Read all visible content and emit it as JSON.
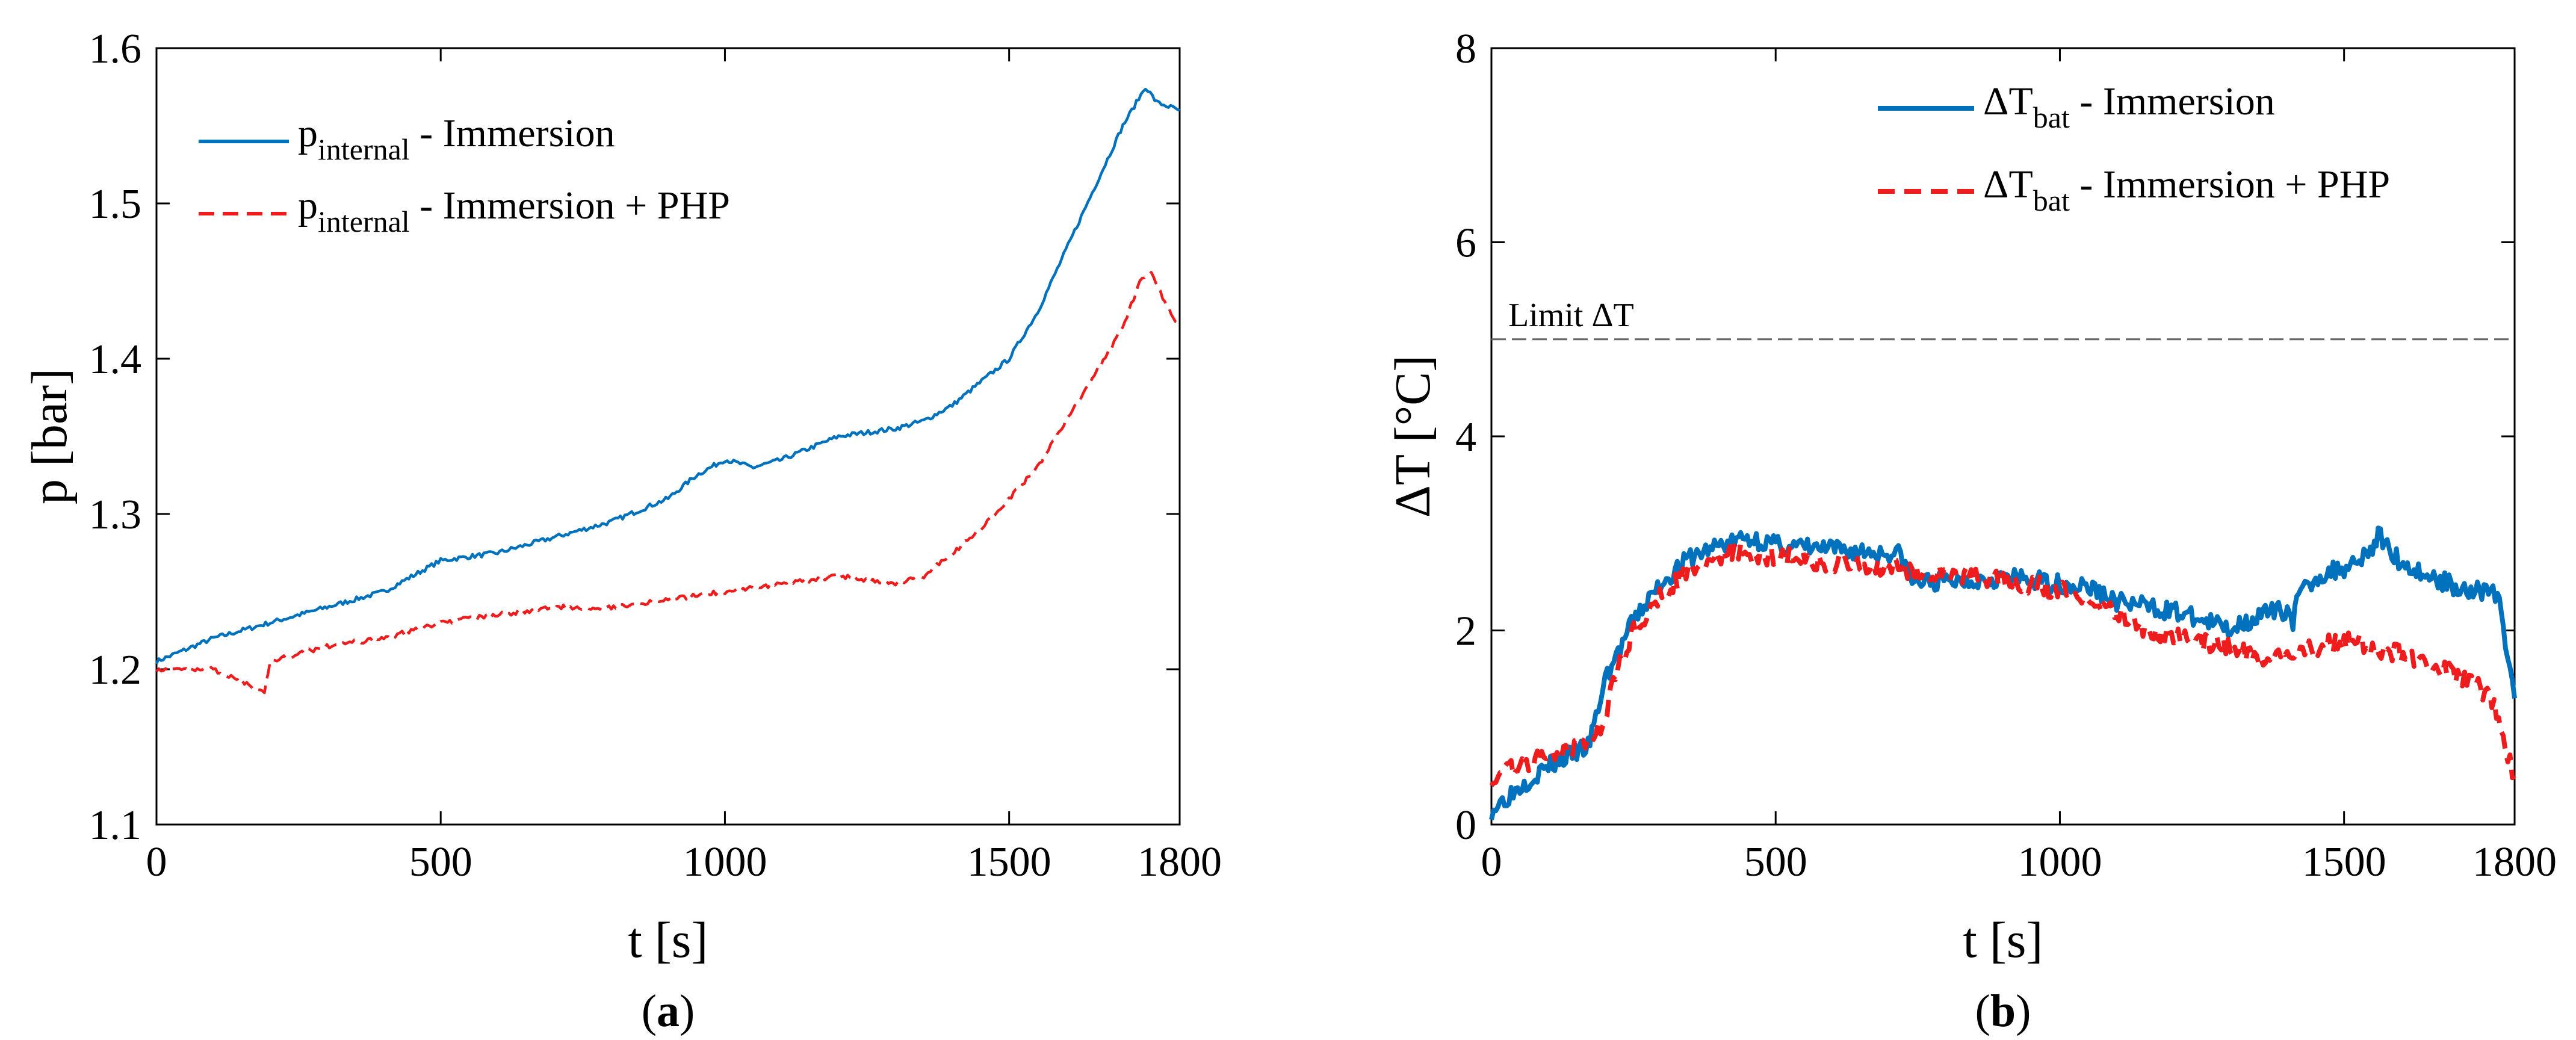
{
  "chart_data": [
    {
      "type": "line",
      "panel_label": "a",
      "xlabel": "t [s]",
      "ylabel": "p [bar]",
      "xlim": [
        0,
        1800
      ],
      "ylim": [
        1.1,
        1.6
      ],
      "xticks": [
        0,
        500,
        1000,
        1500,
        1800
      ],
      "yticks": [
        1.1,
        1.2,
        1.3,
        1.4,
        1.5,
        1.6
      ],
      "xtick_labels": [
        "0",
        "500",
        "1000",
        "1500",
        "1800"
      ],
      "ytick_labels": [
        "1.1",
        "1.2",
        "1.3",
        "1.4",
        "1.5",
        "1.6"
      ],
      "grid": false,
      "legend_position": "top-left",
      "series": [
        {
          "name_main": "p",
          "name_sub": "internal",
          "name_rest": " - Immersion",
          "color": "#0072BD",
          "style": "solid",
          "x": [
            0,
            100,
            200,
            300,
            400,
            500,
            600,
            700,
            800,
            900,
            950,
            1000,
            1050,
            1100,
            1200,
            1300,
            1350,
            1400,
            1500,
            1550,
            1600,
            1650,
            1700,
            1740,
            1760,
            1800
          ],
          "y": [
            1.205,
            1.22,
            1.23,
            1.24,
            1.25,
            1.27,
            1.275,
            1.285,
            1.295,
            1.31,
            1.325,
            1.335,
            1.33,
            1.335,
            1.35,
            1.355,
            1.36,
            1.37,
            1.4,
            1.43,
            1.47,
            1.51,
            1.55,
            1.575,
            1.565,
            1.56
          ]
        },
        {
          "name_main": "p",
          "name_sub": "internal",
          "name_rest": " - Immersion + PHP",
          "color": "#EE1C1C",
          "style": "dashed",
          "x": [
            0,
            100,
            190,
            200,
            300,
            400,
            500,
            600,
            700,
            800,
            900,
            1000,
            1100,
            1200,
            1300,
            1350,
            1400,
            1450,
            1500,
            1550,
            1600,
            1650,
            1700,
            1730,
            1750,
            1770,
            1800
          ],
          "y": [
            1.2,
            1.2,
            1.185,
            1.205,
            1.215,
            1.22,
            1.23,
            1.235,
            1.24,
            1.24,
            1.245,
            1.25,
            1.255,
            1.26,
            1.255,
            1.26,
            1.275,
            1.29,
            1.31,
            1.33,
            1.36,
            1.39,
            1.42,
            1.45,
            1.455,
            1.44,
            1.42
          ]
        }
      ]
    },
    {
      "type": "line",
      "panel_label": "b",
      "xlabel": "t [s]",
      "ylabel": "ΔT [°C]",
      "xlim": [
        0,
        1800
      ],
      "ylim": [
        0,
        8
      ],
      "xticks": [
        0,
        500,
        1000,
        1500,
        1800
      ],
      "yticks": [
        0,
        2,
        4,
        6,
        8
      ],
      "xtick_labels": [
        "0",
        "500",
        "1000",
        "1500",
        "1800"
      ],
      "ytick_labels": [
        "0",
        "2",
        "4",
        "6",
        "8"
      ],
      "grid": false,
      "legend_position": "top-right",
      "reference_line": {
        "y": 5,
        "label": "Limit ΔT",
        "color": "#666666",
        "style": "dashed"
      },
      "series": [
        {
          "name_main": "ΔT",
          "name_sub": "bat",
          "name_rest": " - Immersion",
          "color": "#0072BD",
          "style": "solid",
          "x": [
            0,
            50,
            100,
            150,
            170,
            180,
            200,
            250,
            300,
            350,
            400,
            450,
            470,
            500,
            600,
            700,
            720,
            740,
            800,
            900,
            1000,
            1050,
            1100,
            1200,
            1250,
            1300,
            1320,
            1350,
            1400,
            1410,
            1420,
            1450,
            1500,
            1550,
            1560,
            1600,
            1650,
            1700,
            1750,
            1770,
            1780,
            1800
          ],
          "y": [
            0.15,
            0.4,
            0.6,
            0.75,
            0.8,
            1.0,
            1.5,
            2.1,
            2.5,
            2.75,
            2.88,
            2.95,
            2.93,
            2.88,
            2.83,
            2.8,
            2.78,
            2.5,
            2.5,
            2.55,
            2.48,
            2.45,
            2.3,
            2.2,
            2.1,
            2.02,
            2.08,
            2.15,
            2.22,
            2.1,
            2.35,
            2.55,
            2.65,
            2.85,
            2.98,
            2.7,
            2.55,
            2.45,
            2.4,
            2.38,
            2.0,
            1.3
          ]
        },
        {
          "name_main": "ΔT",
          "name_sub": "bat",
          "name_rest": " - Immersion + PHP",
          "color": "#EE1C1C",
          "style": "dashed",
          "x": [
            0,
            50,
            100,
            150,
            180,
            200,
            210,
            250,
            300,
            350,
            400,
            450,
            500,
            600,
            700,
            800,
            900,
            1000,
            1050,
            1100,
            1150,
            1200,
            1300,
            1350,
            1400,
            1450,
            1500,
            1550,
            1600,
            1650,
            1700,
            1740,
            1760,
            1780,
            1800
          ],
          "y": [
            0.5,
            0.6,
            0.7,
            0.8,
            0.95,
            1.0,
            1.4,
            2.0,
            2.4,
            2.62,
            2.75,
            2.8,
            2.76,
            2.7,
            2.65,
            2.6,
            2.52,
            2.42,
            2.35,
            2.2,
            2.0,
            1.95,
            1.82,
            1.73,
            1.75,
            1.82,
            1.9,
            1.83,
            1.75,
            1.65,
            1.55,
            1.4,
            1.3,
            0.9,
            0.5
          ]
        }
      ]
    }
  ]
}
